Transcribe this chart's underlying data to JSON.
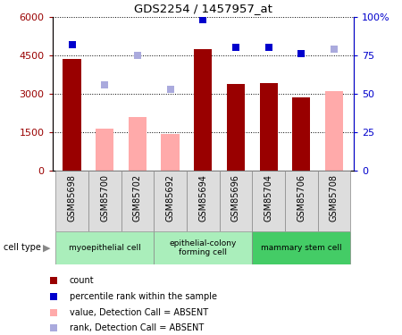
{
  "title": "GDS2254 / 1457957_at",
  "samples": [
    "GSM85698",
    "GSM85700",
    "GSM85702",
    "GSM85692",
    "GSM85694",
    "GSM85696",
    "GSM85704",
    "GSM85706",
    "GSM85708"
  ],
  "count_values": [
    4350,
    null,
    null,
    null,
    4750,
    3380,
    3420,
    2850,
    null
  ],
  "absent_value_values": [
    null,
    1650,
    2100,
    1450,
    null,
    null,
    null,
    null,
    3100
  ],
  "percentile_rank": [
    82,
    null,
    null,
    null,
    98,
    80,
    80,
    76,
    null
  ],
  "absent_rank": [
    null,
    56,
    75,
    53,
    null,
    null,
    null,
    null,
    79
  ],
  "cell_type_groups": [
    {
      "label": "myoepithelial cell",
      "start": 0,
      "end": 3,
      "color": "#AAEEBB"
    },
    {
      "label": "epithelial-colony\nforming cell",
      "start": 3,
      "end": 6,
      "color": "#AAEEBB"
    },
    {
      "label": "mammary stem cell",
      "start": 6,
      "end": 9,
      "color": "#44CC66"
    }
  ],
  "bar_width": 0.55,
  "ylim_left": [
    0,
    6000
  ],
  "ylim_right": [
    0,
    100
  ],
  "left_ticks": [
    0,
    1500,
    3000,
    4500,
    6000
  ],
  "right_ticks": [
    0,
    25,
    50,
    75,
    100
  ],
  "count_color": "#990000",
  "absent_bar_color": "#FFAAAA",
  "rank_color": "#0000CC",
  "absent_rank_color": "#AAAADD",
  "tick_box_color": "#DDDDDD",
  "tick_box_edge": "#888888"
}
